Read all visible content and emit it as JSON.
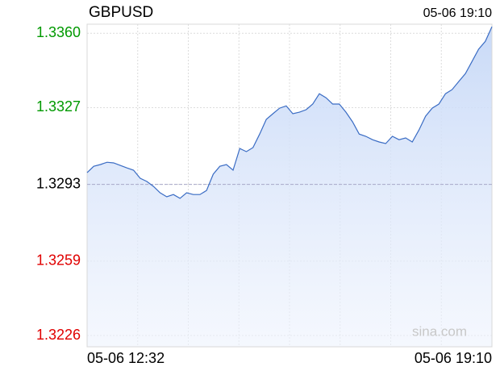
{
  "chart_data": {
    "type": "line",
    "title": "GBPUSD",
    "subtitle": "05-06 19:10",
    "watermark": "sina.com",
    "categories": [
      "05-06 12:32",
      null,
      null,
      null,
      null,
      null,
      null,
      null,
      null,
      null,
      null,
      null,
      null,
      null,
      null,
      null,
      null,
      null,
      null,
      null,
      null,
      null,
      null,
      null,
      null,
      null,
      null,
      null,
      null,
      null,
      null,
      null,
      null,
      null,
      null,
      null,
      null,
      null,
      null,
      null,
      null,
      null,
      null,
      null,
      null,
      null,
      null,
      null,
      null,
      null,
      null,
      null,
      null,
      null,
      null,
      null,
      null,
      null,
      null,
      null,
      null,
      "05-06 19:10"
    ],
    "series": [
      {
        "name": "GBPUSD",
        "color": "#3a6cc4",
        "values": [
          1.32982,
          1.3301,
          1.33018,
          1.33028,
          1.33025,
          1.33014,
          1.33003,
          1.32993,
          1.32957,
          1.32943,
          1.32921,
          1.32893,
          1.32875,
          1.32885,
          1.32868,
          1.32893,
          1.32885,
          1.32885,
          1.32903,
          1.32975,
          1.3301,
          1.33018,
          1.32993,
          1.33089,
          1.33075,
          1.33093,
          1.33153,
          1.33218,
          1.33243,
          1.33268,
          1.33278,
          1.33243,
          1.3325,
          1.33261,
          1.33286,
          1.33332,
          1.33314,
          1.33286,
          1.33286,
          1.3325,
          1.33207,
          1.33153,
          1.33143,
          1.33128,
          1.33118,
          1.33111,
          1.33143,
          1.33128,
          1.33136,
          1.33118,
          1.33171,
          1.33232,
          1.33268,
          1.33286,
          1.33332,
          1.3335,
          1.33386,
          1.33421,
          1.33475,
          1.33529,
          1.33564,
          1.33629
        ]
      }
    ],
    "ylim": [
      1.3221,
      1.3364
    ],
    "yticks": [
      {
        "value": 1.336,
        "label": "1.3360"
      },
      {
        "value": 1.3327,
        "label": "1.3327"
      },
      {
        "value": 1.3293,
        "label": "1.3293"
      },
      {
        "value": 1.3259,
        "label": "1.3259"
      },
      {
        "value": 1.3226,
        "label": "1.3226"
      }
    ],
    "reference_line": 1.3293,
    "up_color": "#009900",
    "down_color": "#e00000",
    "grid": true
  }
}
